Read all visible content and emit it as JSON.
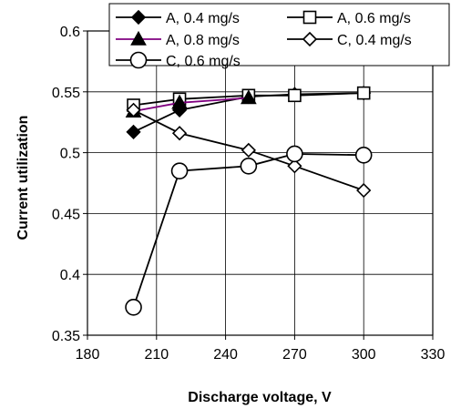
{
  "chart_data": {
    "type": "line",
    "xlabel": "Discharge voltage, V",
    "ylabel": "Current utilization",
    "xlim": [
      180,
      330
    ],
    "ylim": [
      0.35,
      0.6
    ],
    "x_ticks": [
      "180",
      "210",
      "240",
      "270",
      "300",
      "330"
    ],
    "y_ticks": [
      "0.35",
      "0.4",
      "0.45",
      "0.5",
      "0.55",
      "0.6"
    ],
    "grid": true,
    "legend_position": "top",
    "series": [
      {
        "name": "A, 0.4 mg/s",
        "marker": "diamond-filled",
        "color": "#000000",
        "x": [
          200,
          220,
          250,
          270,
          300
        ],
        "y": [
          0.517,
          0.535,
          0.546,
          0.548,
          0.549
        ]
      },
      {
        "name": "A, 0.6 mg/s",
        "marker": "square-open",
        "color": "#000000",
        "x": [
          200,
          220,
          250,
          270,
          300
        ],
        "y": [
          0.539,
          0.544,
          0.547,
          0.547,
          0.549
        ]
      },
      {
        "name": "A, 0.8 mg/s",
        "marker": "triangle-filled",
        "color": "#800080",
        "x": [
          200,
          220,
          250
        ],
        "y": [
          0.534,
          0.541,
          0.545
        ]
      },
      {
        "name": "C, 0.4 mg/s",
        "marker": "diamond-open",
        "color": "#000000",
        "x": [
          200,
          220,
          250,
          270,
          300
        ],
        "y": [
          0.535,
          0.516,
          0.502,
          0.489,
          0.469
        ]
      },
      {
        "name": "C, 0.6 mg/s",
        "marker": "circle-open",
        "color": "#000000",
        "x": [
          200,
          220,
          250,
          270,
          300
        ],
        "y": [
          0.373,
          0.485,
          0.489,
          0.499,
          0.498
        ]
      }
    ]
  }
}
